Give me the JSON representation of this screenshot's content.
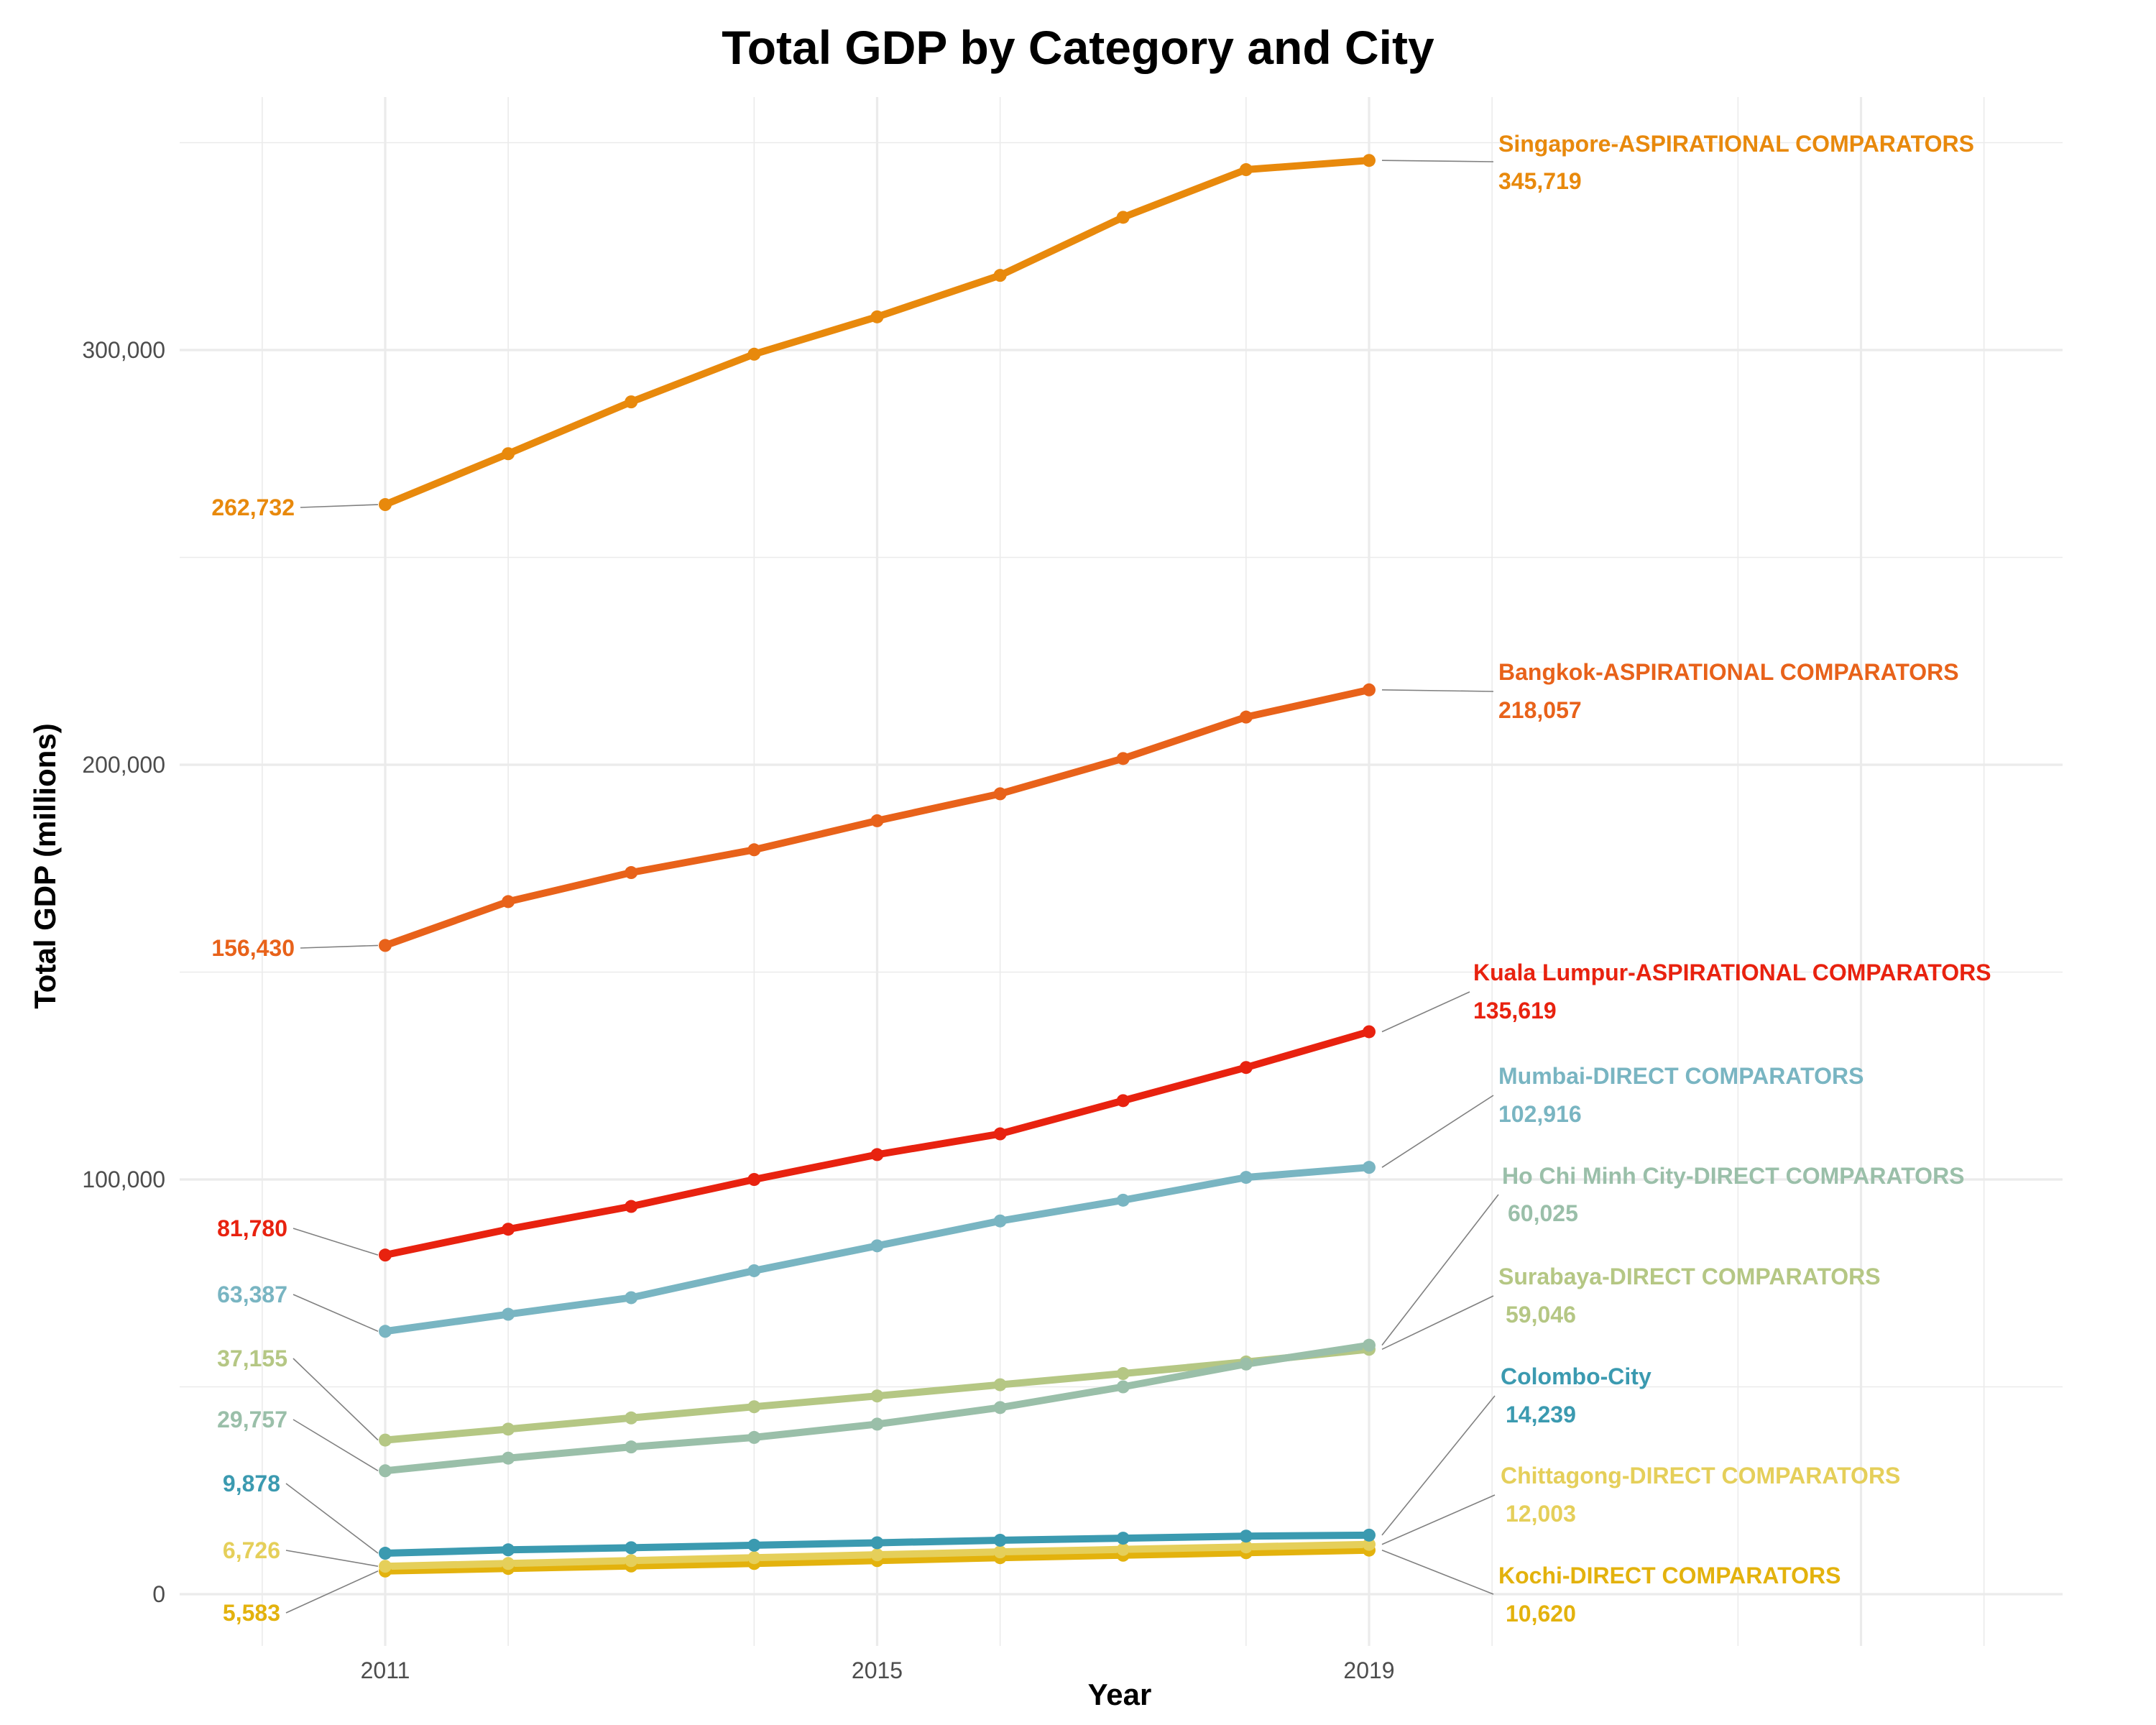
{
  "chart_data": {
    "type": "line",
    "title": "Total GDP by Category and City",
    "xlabel": "Year",
    "ylabel": "Total GDP (millions)",
    "x": [
      2011,
      2012,
      2013,
      2014,
      2015,
      2016,
      2017,
      2018,
      2019
    ],
    "x_ticks": [
      2011,
      2015,
      2019
    ],
    "y_ticks": [
      0,
      100000,
      200000,
      300000
    ],
    "x_tick_labels": [
      "2011",
      "2015",
      "2019"
    ],
    "y_tick_labels": [
      "0",
      "100,000",
      "200,000",
      "300,000"
    ],
    "xlim": [
      2009.3,
      2025.4
    ],
    "ylim": [
      -10000,
      358000
    ],
    "grid": true,
    "legend": "none (direct end labels)",
    "series": [
      {
        "name": "Singapore-ASPIRATIONAL COMPARATORS",
        "color": "#e8890c",
        "values": [
          262732,
          275000,
          287500,
          299000,
          308000,
          318000,
          332000,
          343500,
          345719
        ],
        "start_label": "262,732",
        "end_label": "345,719"
      },
      {
        "name": "Bangkok-ASPIRATIONAL COMPARATORS",
        "color": "#e8621a",
        "values": [
          156430,
          167000,
          174000,
          179500,
          186500,
          193000,
          201500,
          211500,
          218057
        ],
        "start_label": "156,430",
        "end_label": "218,057"
      },
      {
        "name": "Kuala Lumpur-ASPIRATIONAL COMPARATORS",
        "color": "#e8220f",
        "values": [
          81780,
          88000,
          93500,
          100000,
          106000,
          111000,
          119000,
          127000,
          135619
        ],
        "start_label": "81,780",
        "end_label": "135,619"
      },
      {
        "name": "Mumbai-DIRECT COMPARATORS",
        "color": "#79b5c2",
        "values": [
          63387,
          67500,
          71500,
          78000,
          84000,
          90000,
          95000,
          100500,
          102916
        ],
        "start_label": "63,387",
        "end_label": "102,916"
      },
      {
        "name": "Ho Chi Minh City-DIRECT COMPARATORS",
        "color": "#9abfa9",
        "values": [
          29757,
          32800,
          35500,
          37800,
          41000,
          45000,
          50000,
          55500,
          60025
        ],
        "start_label": "29,757",
        "end_label": "60,025"
      },
      {
        "name": "Surabaya-DIRECT COMPARATORS",
        "color": "#b5c784",
        "values": [
          37155,
          39800,
          42500,
          45200,
          47800,
          50500,
          53200,
          56000,
          59046
        ],
        "start_label": "37,155",
        "end_label": "59,046"
      },
      {
        "name": "Colombo-City",
        "color": "#3b9ab0",
        "values": [
          9878,
          10700,
          11200,
          11800,
          12400,
          13000,
          13500,
          14000,
          14239
        ],
        "start_label": "9,878",
        "end_label": "14,239"
      },
      {
        "name": "Chittagong-DIRECT COMPARATORS",
        "color": "#e5cf5a",
        "values": [
          6726,
          7400,
          8100,
          8800,
          9500,
          10200,
          10800,
          11400,
          12003
        ],
        "start_label": "6,726",
        "end_label": "12,003"
      },
      {
        "name": "Kochi-DIRECT COMPARATORS",
        "color": "#e3b20d",
        "values": [
          5583,
          6200,
          6800,
          7400,
          8100,
          8800,
          9400,
          10000,
          10620
        ],
        "start_label": "5,583",
        "end_label": "10,620"
      }
    ]
  }
}
